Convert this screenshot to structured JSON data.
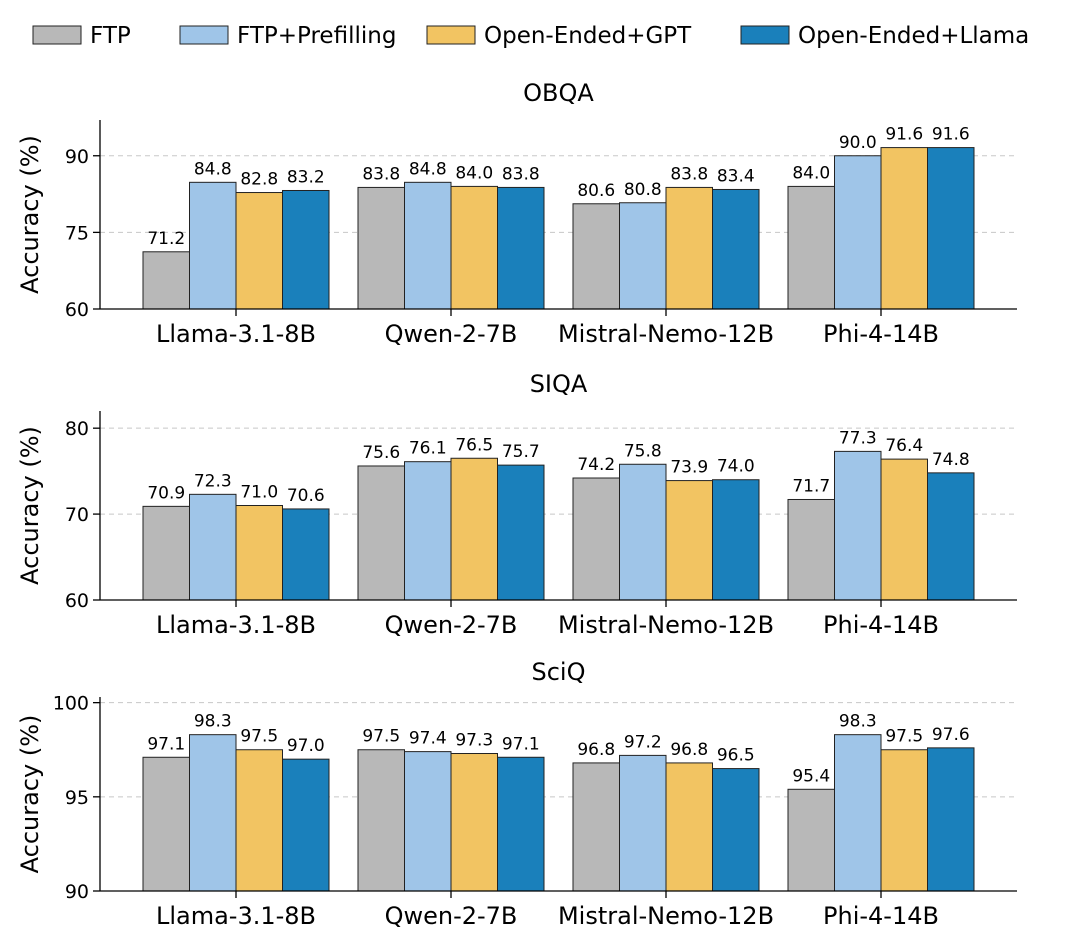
{
  "chart_data": [
    {
      "type": "bar",
      "title": "OBQA",
      "ylabel": "Accuracy (%)",
      "xlabel": "",
      "ylim": [
        60,
        97
      ],
      "yticks": [
        60,
        75,
        90
      ],
      "grid": "horizontal-dashed",
      "categories": [
        "Llama-3.1-8B",
        "Qwen-2-7B",
        "Mistral-Nemo-12B",
        "Phi-4-14B"
      ],
      "series": [
        {
          "name": "FTP",
          "values": [
            71.2,
            83.8,
            80.6,
            84.0
          ]
        },
        {
          "name": "FTP+Prefilling",
          "values": [
            84.8,
            84.8,
            80.8,
            90.0
          ]
        },
        {
          "name": "Open-Ended+GPT",
          "values": [
            82.8,
            84.0,
            83.8,
            91.6
          ]
        },
        {
          "name": "Open-Ended+Llama",
          "values": [
            83.2,
            83.8,
            83.4,
            91.6
          ]
        }
      ]
    },
    {
      "type": "bar",
      "title": "SIQA",
      "ylabel": "Accuracy (%)",
      "xlabel": "",
      "ylim": [
        60,
        82
      ],
      "yticks": [
        60,
        70,
        80
      ],
      "grid": "horizontal-dashed",
      "categories": [
        "Llama-3.1-8B",
        "Qwen-2-7B",
        "Mistral-Nemo-12B",
        "Phi-4-14B"
      ],
      "series": [
        {
          "name": "FTP",
          "values": [
            70.9,
            75.6,
            74.2,
            71.7
          ]
        },
        {
          "name": "FTP+Prefilling",
          "values": [
            72.3,
            76.1,
            75.8,
            77.3
          ]
        },
        {
          "name": "Open-Ended+GPT",
          "values": [
            71.0,
            76.5,
            73.9,
            76.4
          ]
        },
        {
          "name": "Open-Ended+Llama",
          "values": [
            70.6,
            75.7,
            74.0,
            74.8
          ]
        }
      ]
    },
    {
      "type": "bar",
      "title": "SciQ",
      "ylabel": "Accuracy (%)",
      "xlabel": "",
      "ylim": [
        90,
        100.3
      ],
      "yticks": [
        90,
        95,
        100
      ],
      "grid": "horizontal-dashed",
      "categories": [
        "Llama-3.1-8B",
        "Qwen-2-7B",
        "Mistral-Nemo-12B",
        "Phi-4-14B"
      ],
      "series": [
        {
          "name": "FTP",
          "values": [
            97.1,
            97.5,
            96.8,
            95.4
          ]
        },
        {
          "name": "FTP+Prefilling",
          "values": [
            98.3,
            97.4,
            97.2,
            98.3
          ]
        },
        {
          "name": "Open-Ended+GPT",
          "values": [
            97.5,
            97.3,
            96.8,
            97.5
          ]
        },
        {
          "name": "Open-Ended+Llama",
          "values": [
            97.0,
            97.1,
            96.5,
            97.6
          ]
        }
      ]
    }
  ],
  "legend": {
    "position": "top-center",
    "entries": [
      "FTP",
      "FTP+Prefilling",
      "Open-Ended+GPT",
      "Open-Ended+Llama"
    ]
  },
  "colors": {
    "FTP": "#b8b8b8",
    "FTP+Prefilling": "#9fc5e8",
    "Open-Ended+GPT": "#f2c462",
    "Open-Ended+Llama": "#1a80bb"
  },
  "value_decimals": 1
}
